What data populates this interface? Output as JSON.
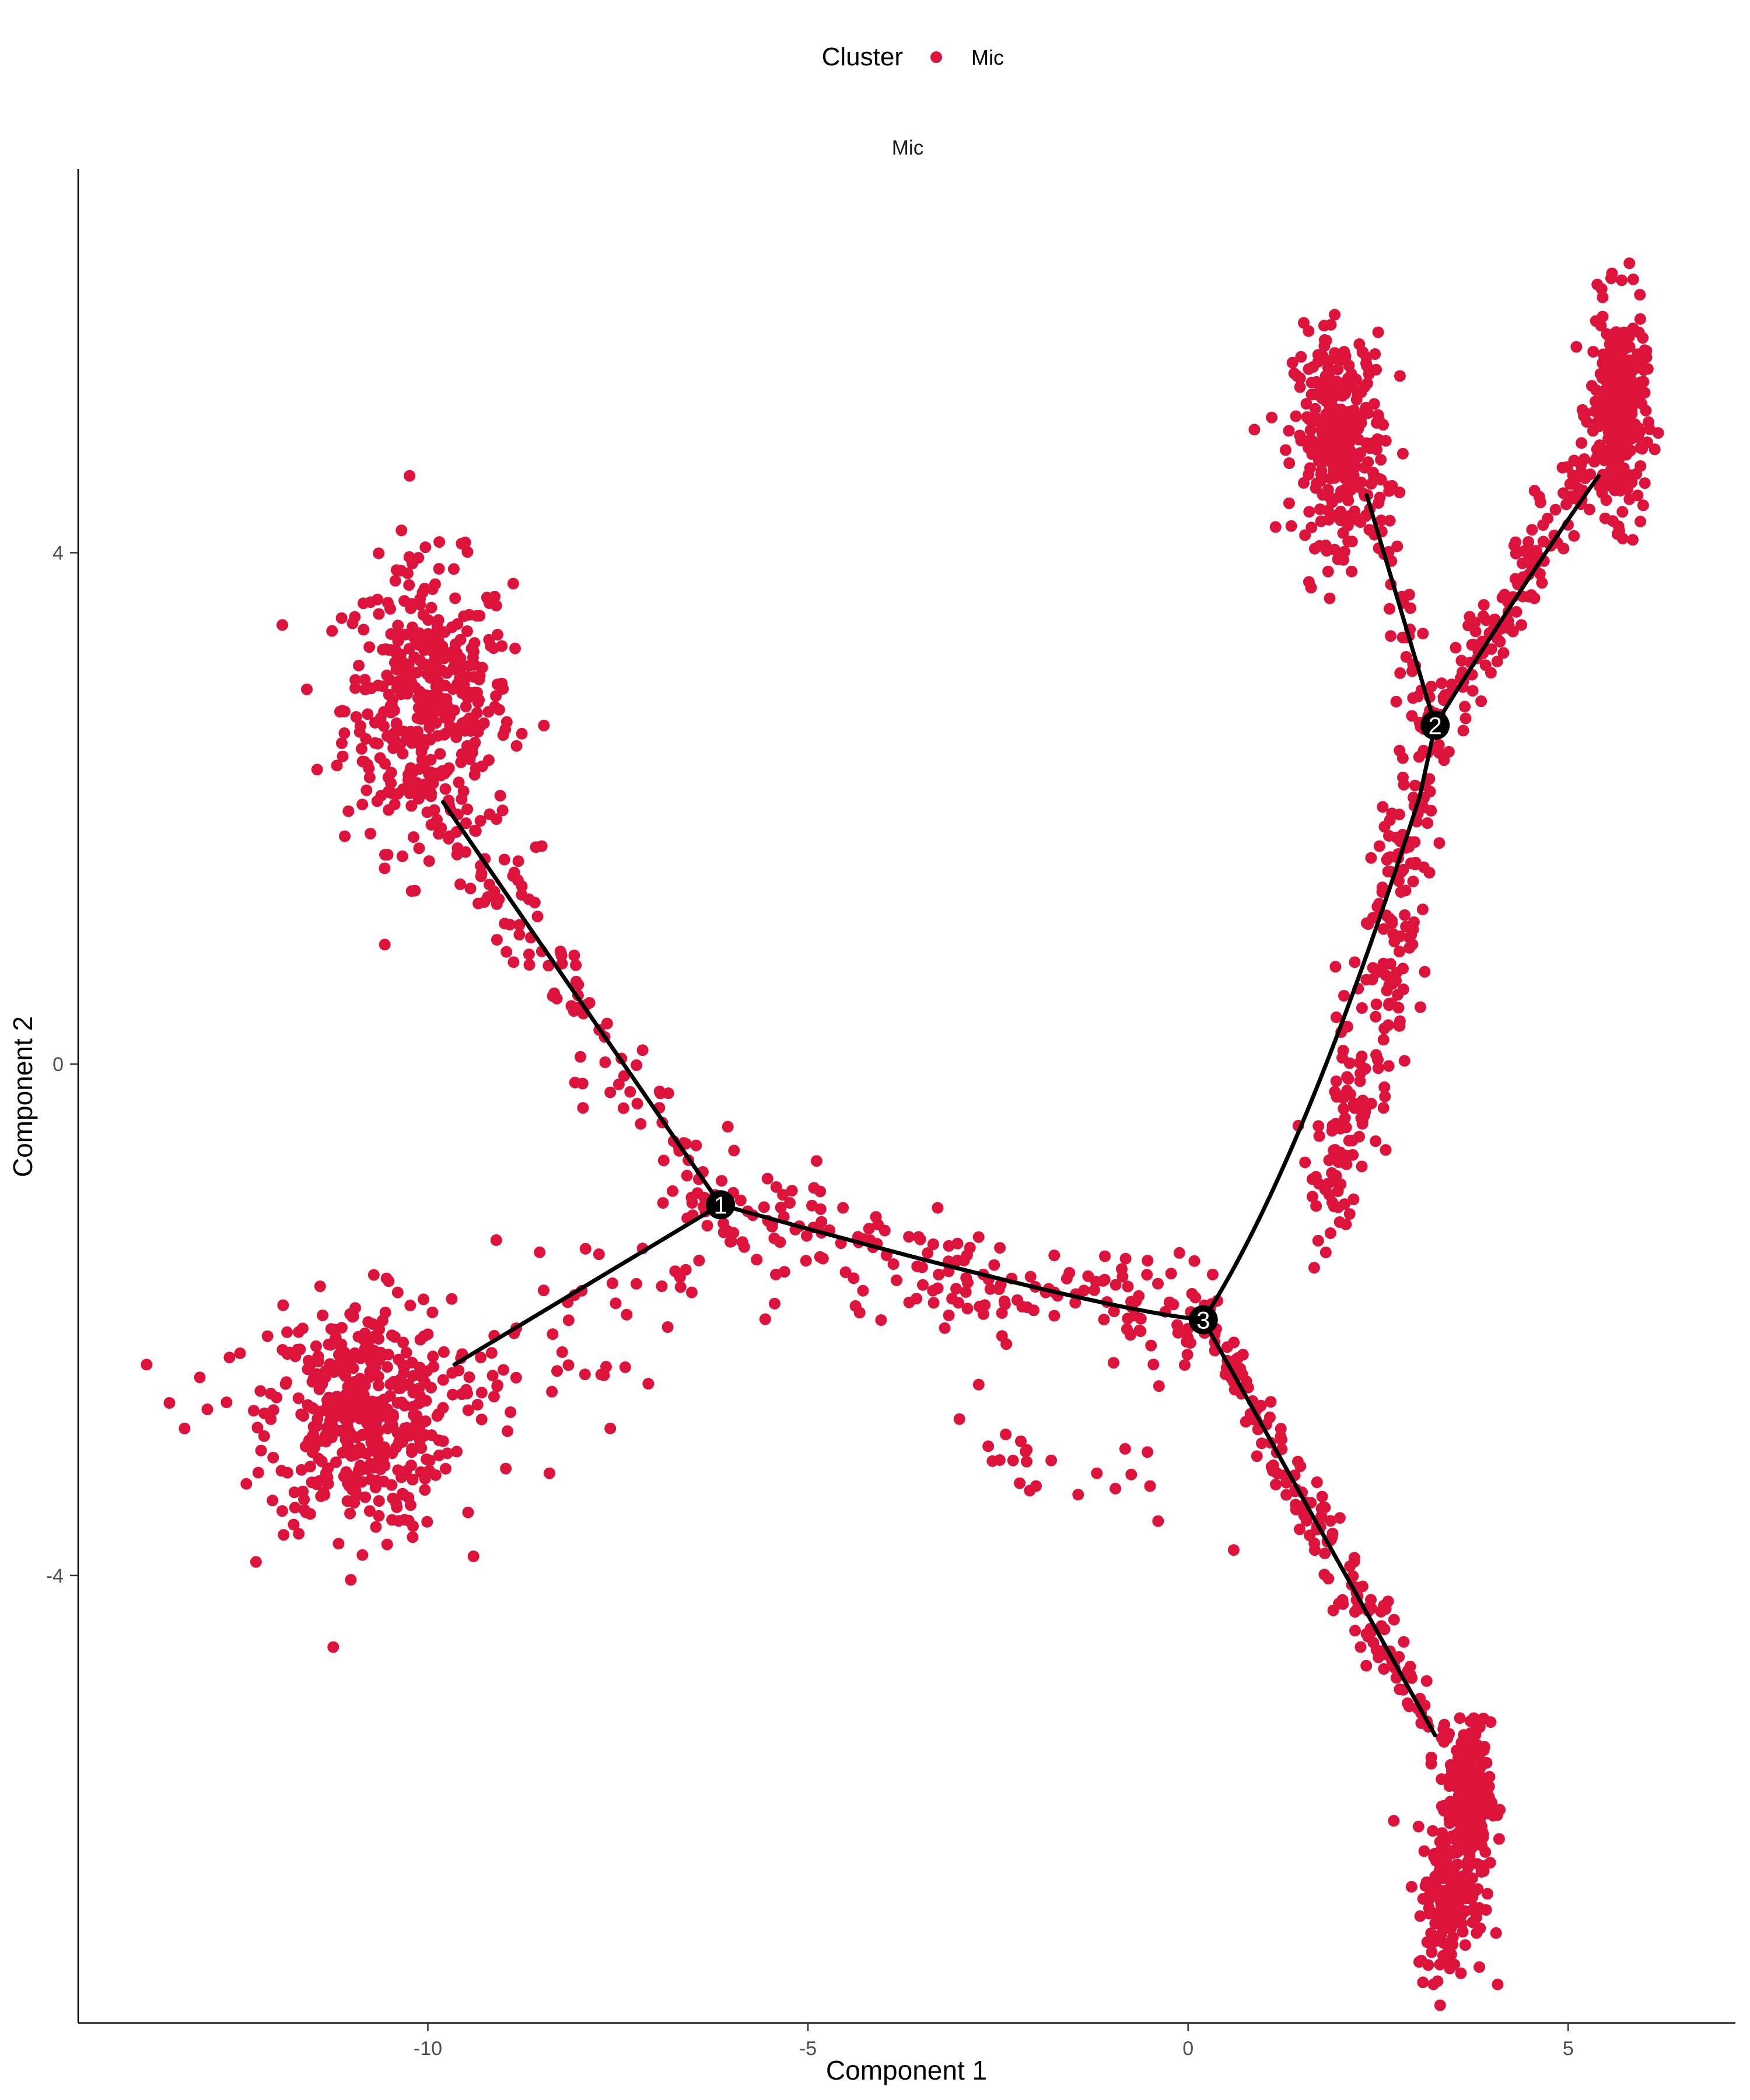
{
  "chart_data": {
    "type": "scatter",
    "title": "",
    "facet_label": "Mic",
    "xlabel": "Component 1",
    "ylabel": "Component 2",
    "xlim": [
      -14.6,
      7.2
    ],
    "ylim": [
      -7.5,
      7.0
    ],
    "x_ticks": [
      {
        "value": -10,
        "label": "-10"
      },
      {
        "value": -5,
        "label": "-5"
      },
      {
        "value": 0,
        "label": "0"
      },
      {
        "value": 5,
        "label": "5"
      }
    ],
    "y_ticks": [
      {
        "value": 4,
        "label": "4"
      },
      {
        "value": 0,
        "label": "0"
      },
      {
        "value": -4,
        "label": "-4"
      }
    ],
    "grid": false,
    "legend": {
      "title": "Cluster",
      "position": "top",
      "entries": [
        {
          "name": "Mic",
          "color": "#dc143c"
        }
      ]
    },
    "point_color": "#dc143c",
    "series": [
      {
        "name": "Mic",
        "clusters": [
          {
            "cx": -10.0,
            "cy": 2.8,
            "sx": 0.55,
            "sy": 0.55,
            "n": 420
          },
          {
            "cx": -10.9,
            "cy": -2.75,
            "sx": 0.6,
            "sy": 0.45,
            "n": 440
          },
          {
            "cx": 2.0,
            "cy": 4.9,
            "sx": 0.3,
            "sy": 0.4,
            "n": 320
          },
          {
            "cx": 5.65,
            "cy": 5.1,
            "sx": 0.18,
            "sy": 0.4,
            "n": 320
          },
          {
            "cx": 3.7,
            "cy": -5.75,
            "sx": 0.14,
            "sy": 0.3,
            "n": 260
          },
          {
            "cx": 3.45,
            "cy": -6.55,
            "sx": 0.22,
            "sy": 0.3,
            "n": 140
          }
        ],
        "paths": [
          {
            "points": [
              [
                -10.0,
                2.1
              ],
              [
                -6.15,
                -1.1
              ]
            ],
            "n": 110,
            "spread": 0.32
          },
          {
            "points": [
              [
                -6.15,
                -1.1
              ],
              [
                -3.0,
                -1.7
              ],
              [
                0.2,
                -2.0
              ]
            ],
            "n": 190,
            "spread": 0.38
          },
          {
            "points": [
              [
                0.2,
                -2.0
              ],
              [
                3.4,
                -5.4
              ]
            ],
            "n": 170,
            "spread": 0.2
          },
          {
            "points": [
              [
                3.2,
                2.65
              ],
              [
                5.35,
                4.7
              ]
            ],
            "n": 130,
            "spread": 0.22
          },
          {
            "points": [
              [
                3.2,
                2.65
              ],
              [
                2.4,
                4.5
              ]
            ],
            "n": 40,
            "spread": 0.18
          },
          {
            "points": [
              [
                3.15,
                2.45
              ],
              [
                2.5,
                0.5
              ],
              [
                1.7,
                -1.3
              ]
            ],
            "n": 220,
            "spread": 0.35
          },
          {
            "points": [
              [
                -9.7,
                -2.7
              ],
              [
                -6.2,
                -1.3
              ]
            ],
            "n": 60,
            "spread": 0.5
          },
          {
            "points": [
              [
                -3.0,
                -2.9
              ],
              [
                -0.5,
                -3.4
              ]
            ],
            "n": 18,
            "spread": 0.3
          }
        ],
        "scatter_points": [
          [
            -13.7,
            -2.35
          ],
          [
            -13.4,
            -2.65
          ],
          [
            -13.0,
            -2.45
          ],
          [
            -12.9,
            -2.7
          ],
          [
            -13.2,
            -2.85
          ],
          [
            -10.2,
            -3.7
          ],
          [
            -9.4,
            -3.85
          ],
          [
            -8.4,
            -3.2
          ],
          [
            -8.3,
            -2.4
          ],
          [
            -7.6,
            -2.85
          ],
          [
            -7.1,
            -2.5
          ],
          [
            0.6,
            -3.8
          ],
          [
            -1.2,
            -3.2
          ],
          [
            -0.5,
            -3.3
          ],
          [
            -2.0,
            -3.3
          ],
          [
            -1.8,
            -3.1
          ],
          [
            -2.2,
            -2.95
          ]
        ]
      }
    ],
    "trajectory": [
      {
        "from": [
          -9.8,
          2.05
        ],
        "to": [
          -6.15,
          -1.1
        ]
      },
      {
        "from": [
          -9.65,
          -2.35
        ],
        "to": [
          -6.15,
          -1.1
        ]
      },
      {
        "from": [
          -6.15,
          -1.1
        ],
        "via": [
          -1.2,
          -1.92
        ],
        "to": [
          0.2,
          -2.0
        ]
      },
      {
        "from": [
          0.2,
          -2.0
        ],
        "to": [
          3.25,
          -5.25
        ]
      },
      {
        "from": [
          0.2,
          -2.0
        ],
        "via": [
          1.5,
          -0.8
        ],
        "to": [
          3.05,
          2.1
        ]
      },
      {
        "from": [
          3.05,
          2.1
        ],
        "to": [
          3.25,
          2.65
        ]
      },
      {
        "from": [
          3.25,
          2.65
        ],
        "to": [
          2.35,
          4.45
        ]
      },
      {
        "from": [
          3.25,
          2.65
        ],
        "via": [
          4.5,
          3.85
        ],
        "to": [
          5.4,
          4.6
        ]
      }
    ],
    "branch_points": [
      {
        "label": "1",
        "x": -6.15,
        "y": -1.1
      },
      {
        "label": "2",
        "x": 3.25,
        "y": 2.65
      },
      {
        "label": "3",
        "x": 0.2,
        "y": -2.0
      }
    ]
  }
}
